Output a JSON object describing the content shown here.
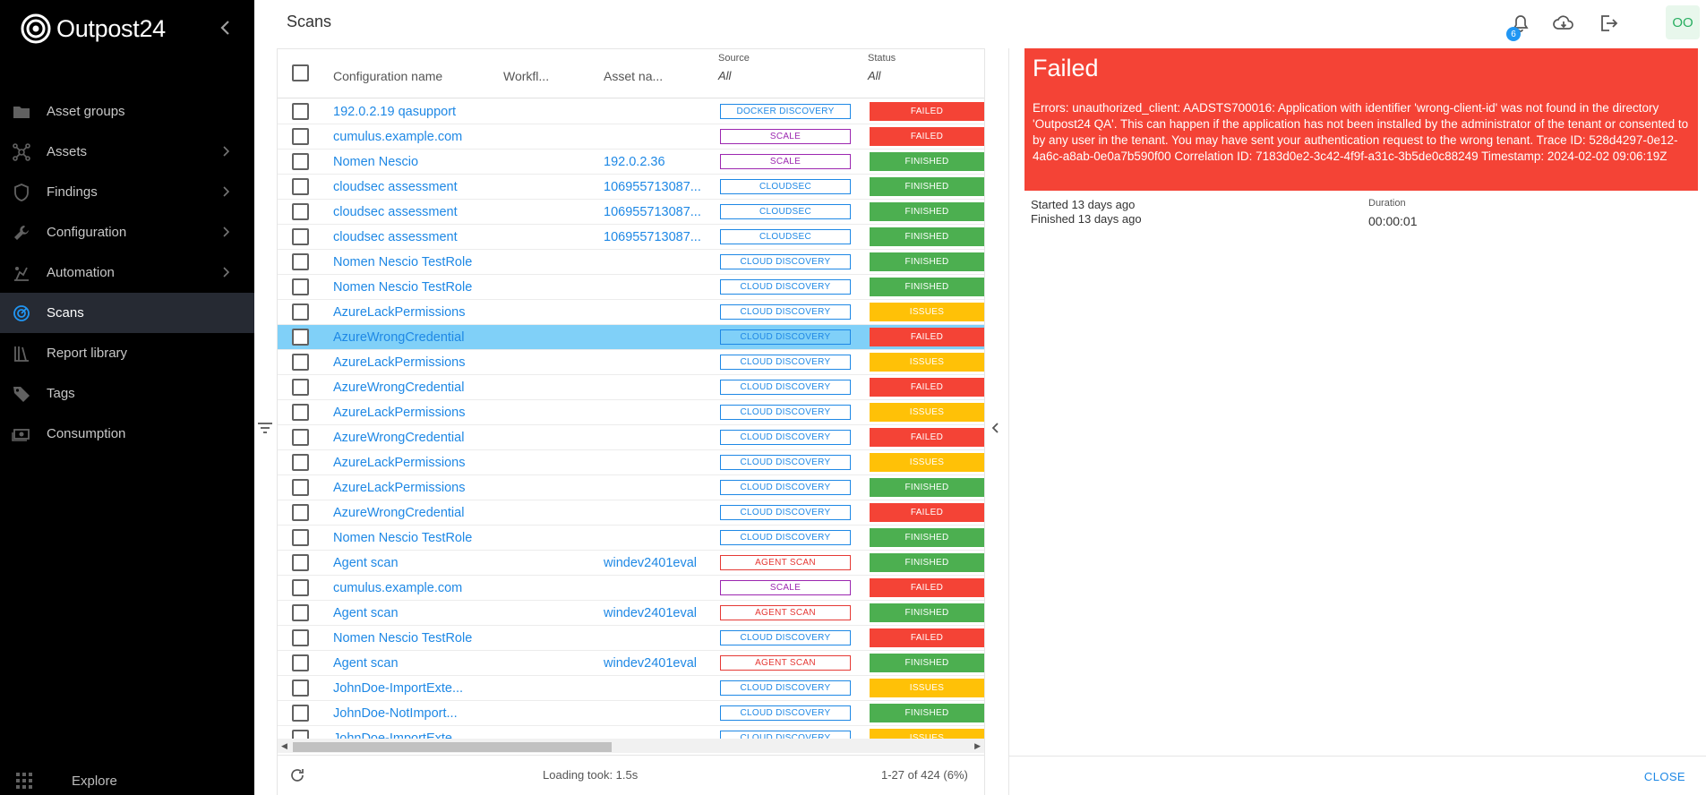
{
  "app": {
    "name": "Outpost24"
  },
  "sidebar": {
    "items": [
      {
        "label": "Asset groups",
        "icon": "folder-icon",
        "chevron": false
      },
      {
        "label": "Assets",
        "icon": "network-icon",
        "chevron": true
      },
      {
        "label": "Findings",
        "icon": "shield-icon",
        "chevron": true
      },
      {
        "label": "Configuration",
        "icon": "wrench-icon",
        "chevron": true
      },
      {
        "label": "Automation",
        "icon": "automation-icon",
        "chevron": true
      },
      {
        "label": "Scans",
        "icon": "radar-icon",
        "chevron": false,
        "active": true
      },
      {
        "label": "Report library",
        "icon": "library-icon",
        "chevron": false
      },
      {
        "label": "Tags",
        "icon": "tag-icon",
        "chevron": false
      },
      {
        "label": "Consumption",
        "icon": "money-icon",
        "chevron": false
      }
    ],
    "explore_label": "Explore"
  },
  "header": {
    "title": "Scans",
    "notification_count": "6",
    "avatar_initials": "OO"
  },
  "table": {
    "columns": {
      "configuration_name": "Configuration name",
      "workflow": "Workfl...",
      "asset_name": "Asset na...",
      "source": "Source",
      "source_filter": "All",
      "status": "Status",
      "status_filter": "All"
    },
    "rows": [
      {
        "config": "192.0.2.19 qasupport",
        "asset": "",
        "source": "DOCKER DISCOVERY",
        "source_kind": "docker",
        "status": "FAILED",
        "status_kind": "failed"
      },
      {
        "config": "cumulus.example.com",
        "asset": "",
        "source": "SCALE",
        "source_kind": "scale",
        "status": "FAILED",
        "status_kind": "failed"
      },
      {
        "config": "Nomen Nescio",
        "asset": "192.0.2.36",
        "source": "SCALE",
        "source_kind": "scale",
        "status": "FINISHED",
        "status_kind": "finished"
      },
      {
        "config": "cloudsec assessment",
        "asset": "106955713087...",
        "source": "CLOUDSEC",
        "source_kind": "cloudsec",
        "status": "FINISHED",
        "status_kind": "finished"
      },
      {
        "config": "cloudsec assessment",
        "asset": "106955713087...",
        "source": "CLOUDSEC",
        "source_kind": "cloudsec",
        "status": "FINISHED",
        "status_kind": "finished"
      },
      {
        "config": "cloudsec assessment",
        "asset": "106955713087...",
        "source": "CLOUDSEC",
        "source_kind": "cloudsec",
        "status": "FINISHED",
        "status_kind": "finished"
      },
      {
        "config": "Nomen Nescio TestRole",
        "asset": "",
        "source": "CLOUD DISCOVERY",
        "source_kind": "cloud",
        "status": "FINISHED",
        "status_kind": "finished"
      },
      {
        "config": "Nomen Nescio TestRole",
        "asset": "",
        "source": "CLOUD DISCOVERY",
        "source_kind": "cloud",
        "status": "FINISHED",
        "status_kind": "finished"
      },
      {
        "config": "AzureLackPermissions",
        "asset": "",
        "source": "CLOUD DISCOVERY",
        "source_kind": "cloud",
        "status": "ISSUES",
        "status_kind": "issues"
      },
      {
        "config": "AzureWrongCredential",
        "asset": "",
        "source": "CLOUD DISCOVERY",
        "source_kind": "cloud",
        "status": "FAILED",
        "status_kind": "failed",
        "selected": true
      },
      {
        "config": "AzureLackPermissions",
        "asset": "",
        "source": "CLOUD DISCOVERY",
        "source_kind": "cloud",
        "status": "ISSUES",
        "status_kind": "issues"
      },
      {
        "config": "AzureWrongCredential",
        "asset": "",
        "source": "CLOUD DISCOVERY",
        "source_kind": "cloud",
        "status": "FAILED",
        "status_kind": "failed"
      },
      {
        "config": "AzureLackPermissions",
        "asset": "",
        "source": "CLOUD DISCOVERY",
        "source_kind": "cloud",
        "status": "ISSUES",
        "status_kind": "issues"
      },
      {
        "config": "AzureWrongCredential",
        "asset": "",
        "source": "CLOUD DISCOVERY",
        "source_kind": "cloud",
        "status": "FAILED",
        "status_kind": "failed"
      },
      {
        "config": "AzureLackPermissions",
        "asset": "",
        "source": "CLOUD DISCOVERY",
        "source_kind": "cloud",
        "status": "ISSUES",
        "status_kind": "issues"
      },
      {
        "config": "AzureLackPermissions",
        "asset": "",
        "source": "CLOUD DISCOVERY",
        "source_kind": "cloud",
        "status": "FINISHED",
        "status_kind": "finished"
      },
      {
        "config": "AzureWrongCredential",
        "asset": "",
        "source": "CLOUD DISCOVERY",
        "source_kind": "cloud",
        "status": "FAILED",
        "status_kind": "failed"
      },
      {
        "config": "Nomen Nescio TestRole",
        "asset": "",
        "source": "CLOUD DISCOVERY",
        "source_kind": "cloud",
        "status": "FINISHED",
        "status_kind": "finished"
      },
      {
        "config": "Agent scan",
        "asset": "windev2401eval",
        "source": "AGENT SCAN",
        "source_kind": "agent",
        "status": "FINISHED",
        "status_kind": "finished"
      },
      {
        "config": "cumulus.example.com",
        "asset": "",
        "source": "SCALE",
        "source_kind": "scale",
        "status": "FAILED",
        "status_kind": "failed"
      },
      {
        "config": "Agent scan",
        "asset": "windev2401eval",
        "source": "AGENT SCAN",
        "source_kind": "agent",
        "status": "FINISHED",
        "status_kind": "finished"
      },
      {
        "config": "Nomen Nescio TestRole",
        "asset": "",
        "source": "CLOUD DISCOVERY",
        "source_kind": "cloud",
        "status": "FAILED",
        "status_kind": "failed"
      },
      {
        "config": "Agent scan",
        "asset": "windev2401eval",
        "source": "AGENT SCAN",
        "source_kind": "agent",
        "status": "FINISHED",
        "status_kind": "finished"
      },
      {
        "config": "JohnDoe-ImportExte...",
        "asset": "",
        "source": "CLOUD DISCOVERY",
        "source_kind": "cloud",
        "status": "ISSUES",
        "status_kind": "issues"
      },
      {
        "config": "JohnDoe-NotImport...",
        "asset": "",
        "source": "CLOUD DISCOVERY",
        "source_kind": "cloud",
        "status": "FINISHED",
        "status_kind": "finished"
      },
      {
        "config": "JohnDoe-ImportExte...",
        "asset": "",
        "source": "CLOUD DISCOVERY",
        "source_kind": "cloud",
        "status": "ISSUES",
        "status_kind": "issues"
      }
    ]
  },
  "footer": {
    "loading": "Loading took: 1.5s",
    "range": "1-27 of 424 (6%)"
  },
  "details": {
    "title": "Failed",
    "error": "Errors: unauthorized_client: AADSTS700016: Application with identifier 'wrong-client-id' was not found in the directory 'Outpost24 QA'. This can happen if the application has not been installed by the administrator of the tenant or consented to by any user in the tenant. You may have sent your authentication request to the wrong tenant. Trace ID: 528d4297-0e12-4a6c-a8ab-0e0a7b590f00 Correlation ID: 7183d0e2-3c42-4f9f-a31c-3b5de0c88249 Timestamp: 2024-02-02 09:06:19Z",
    "started": "Started 13 days ago",
    "finished": "Finished 13 days ago",
    "duration_label": "Duration",
    "duration_value": "00:00:01",
    "close_label": "CLOSE"
  }
}
